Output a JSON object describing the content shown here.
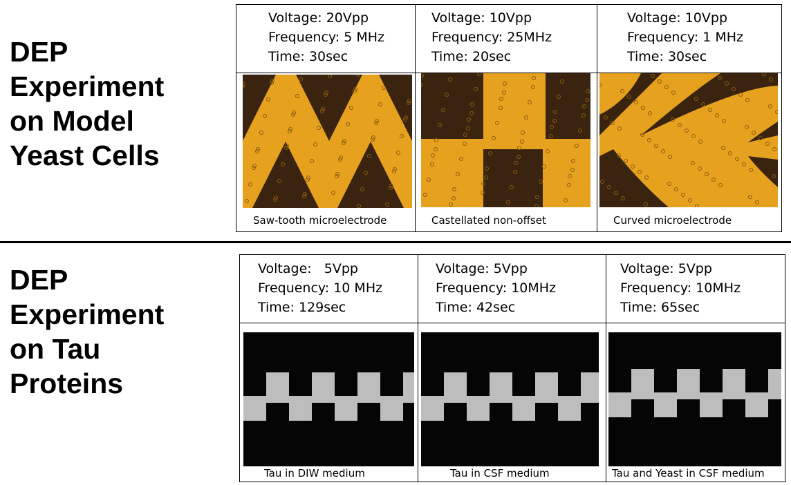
{
  "sections": [
    {
      "title_lines": [
        "DEP",
        "Experiment",
        "on Model",
        "Yeast Cells"
      ],
      "panels": [
        {
          "lines": [
            "Voltage: 20Vpp",
            "Frequency: 5 MHz",
            "Time: 30sec"
          ],
          "caption": "Saw-tooth microelectrode"
        },
        {
          "lines": [
            "Voltage: 10Vpp",
            "Frequency: 25MHz",
            "Time: 20sec"
          ],
          "caption": "Castellated non-offset"
        },
        {
          "lines": [
            "Voltage: 10Vpp",
            "Frequency: 1 MHz",
            "Time: 30sec"
          ],
          "caption": "Curved microelectrode"
        }
      ]
    },
    {
      "title_lines": [
        "DEP",
        "Experiment",
        "on Tau",
        "Proteins"
      ],
      "panels": [
        {
          "lines": [
            "Voltage:   5Vpp",
            "Frequency: 10 MHz",
            "Time: 129sec"
          ],
          "caption": "Tau in DIW medium"
        },
        {
          "lines": [
            "Voltage: 5Vpp",
            "Frequency: 10MHz",
            "Time: 42sec"
          ],
          "caption": "Tau in CSF medium"
        },
        {
          "lines": [
            "Voltage: 5Vpp",
            "Frequency: 10MHz",
            "Time: 65sec"
          ],
          "caption": "Tau and Yeast in CSF medium"
        }
      ]
    }
  ]
}
